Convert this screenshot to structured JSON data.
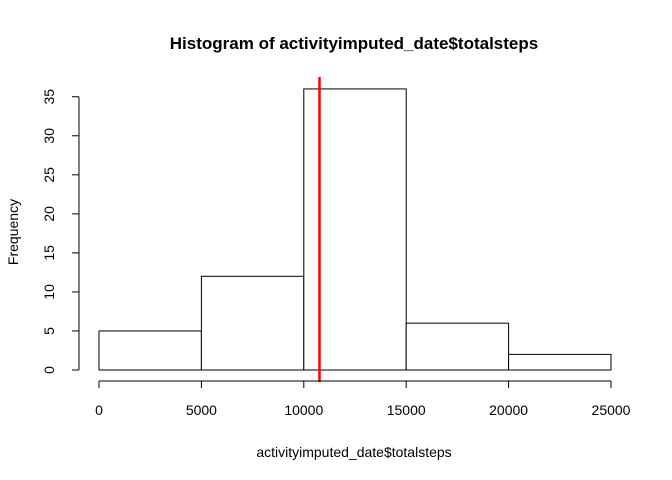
{
  "chart_data": {
    "type": "bar",
    "title": "Histogram of activityimputed_date$totalsteps",
    "xlabel": "activityimputed_date$totalsteps",
    "ylabel": "Frequency",
    "bins": [
      {
        "from": 0,
        "to": 5000,
        "count": 5
      },
      {
        "from": 5000,
        "to": 10000,
        "count": 12
      },
      {
        "from": 10000,
        "to": 15000,
        "count": 36
      },
      {
        "from": 15000,
        "to": 20000,
        "count": 6
      },
      {
        "from": 20000,
        "to": 25000,
        "count": 2
      }
    ],
    "xlim": [
      0,
      25000
    ],
    "ylim": [
      0,
      37.4
    ],
    "x_ticks": [
      "0",
      "5000",
      "10000",
      "15000",
      "20000",
      "25000"
    ],
    "y_ticks": [
      "0",
      "5",
      "10",
      "15",
      "20",
      "25",
      "30",
      "35"
    ],
    "vline": {
      "x": 10766,
      "color": "#ff0000"
    },
    "grid": false,
    "legend": "none"
  }
}
